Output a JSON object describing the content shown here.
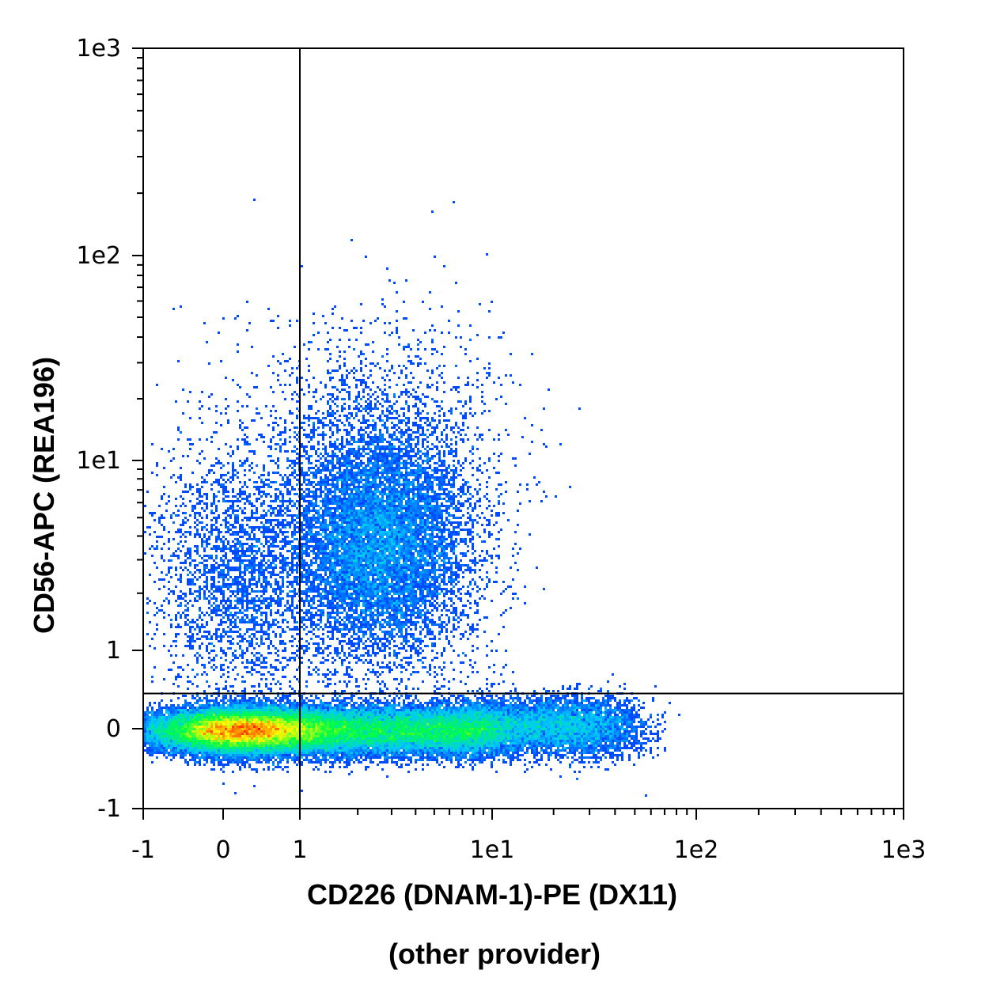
{
  "chart_data": {
    "type": "scatter",
    "style": "density-dot-plot",
    "title": "",
    "xlabel": "CD226 (DNAM-1)-PE (DX11)",
    "xlabel_line2": "(other provider)",
    "ylabel": "CD56-APC (REA196)",
    "x_scale": "biexponential",
    "y_scale": "biexponential",
    "xlim": [
      -1,
      1000
    ],
    "ylim": [
      -1,
      1000
    ],
    "x_ticks": [
      {
        "value": -1,
        "label": "-1"
      },
      {
        "value": 0,
        "label": "0"
      },
      {
        "value": 1,
        "label": "1"
      },
      {
        "value": 10,
        "label": "1e1"
      },
      {
        "value": 100,
        "label": "1e2"
      },
      {
        "value": 1000,
        "label": "1e3"
      }
    ],
    "y_ticks": [
      {
        "value": -1,
        "label": "-1"
      },
      {
        "value": 0,
        "label": "0"
      },
      {
        "value": 1,
        "label": "1"
      },
      {
        "value": 10,
        "label": "1e1"
      },
      {
        "value": 100,
        "label": "1e2"
      },
      {
        "value": 1000,
        "label": "1e3"
      }
    ],
    "quadrant_gates": {
      "x": 1,
      "y": 0.45
    },
    "colormap": [
      "#0000ff",
      "#00c8ff",
      "#00ff40",
      "#ffff00",
      "#ff0000"
    ],
    "populations": [
      {
        "x_center": 0.3,
        "y_center": -0.05,
        "x_spread": 0.55,
        "y_spread": 0.2,
        "density": "very-high"
      },
      {
        "x_center": 3.5,
        "y_center": -0.05,
        "x_spread": 0.6,
        "y_spread": 0.2,
        "density": "high"
      },
      {
        "x_center": 2.8,
        "y_center": 3.5,
        "x_spread": 0.45,
        "y_spread": 0.6,
        "density": "medium"
      },
      {
        "x_center": 0.3,
        "y_center": 3,
        "x_spread": 0.5,
        "y_spread": 0.5,
        "density": "low"
      }
    ]
  }
}
